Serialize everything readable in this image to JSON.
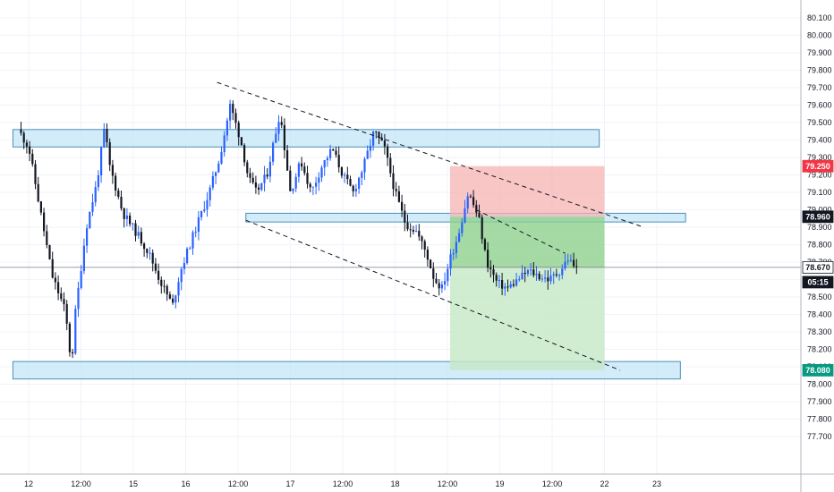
{
  "chart_data": {
    "type": "candlestick",
    "grid": true,
    "y_axis": {
      "side": "right",
      "range": [
        77.65,
        80.15
      ],
      "ticks": [
        "80.100",
        "80.000",
        "79.900",
        "79.800",
        "79.700",
        "79.600",
        "79.500",
        "79.400",
        "79.300",
        "79.200",
        "79.100",
        "79.000",
        "78.900",
        "78.800",
        "78.700",
        "78.600",
        "78.500",
        "78.400",
        "78.300",
        "78.200",
        "78.100",
        "78.000",
        "77.900",
        "77.800",
        "77.700"
      ]
    },
    "x_axis": {
      "ticks": [
        {
          "label": "12",
          "pos": 0
        },
        {
          "label": "12:00",
          "pos": 1
        },
        {
          "label": "15",
          "pos": 2
        },
        {
          "label": "16",
          "pos": 3
        },
        {
          "label": "12:00",
          "pos": 4
        },
        {
          "label": "17",
          "pos": 5
        },
        {
          "label": "12:00",
          "pos": 6
        },
        {
          "label": "18",
          "pos": 7
        },
        {
          "label": "12:00",
          "pos": 8
        },
        {
          "label": "19",
          "pos": 9
        },
        {
          "label": "12:00",
          "pos": 10
        },
        {
          "label": "22",
          "pos": 11
        },
        {
          "label": "23",
          "pos": 12
        }
      ]
    },
    "price_path": [
      [
        -0.2,
        79.46
      ],
      [
        0.0,
        79.36
      ],
      [
        0.25,
        78.95
      ],
      [
        0.45,
        78.62
      ],
      [
        0.7,
        78.42
      ],
      [
        0.82,
        78.1
      ],
      [
        0.88,
        78.38
      ],
      [
        1.1,
        78.9
      ],
      [
        1.3,
        79.15
      ],
      [
        1.45,
        79.47
      ],
      [
        1.55,
        79.25
      ],
      [
        1.8,
        78.98
      ],
      [
        2.1,
        78.85
      ],
      [
        2.3,
        78.75
      ],
      [
        2.5,
        78.6
      ],
      [
        2.75,
        78.45
      ],
      [
        2.9,
        78.65
      ],
      [
        3.2,
        78.9
      ],
      [
        3.45,
        79.1
      ],
      [
        3.65,
        79.3
      ],
      [
        3.85,
        79.6
      ],
      [
        4.05,
        79.4
      ],
      [
        4.2,
        79.18
      ],
      [
        4.35,
        79.1
      ],
      [
        4.55,
        79.2
      ],
      [
        4.8,
        79.56
      ],
      [
        5.0,
        79.1
      ],
      [
        5.2,
        79.28
      ],
      [
        5.4,
        79.1
      ],
      [
        5.6,
        79.25
      ],
      [
        5.8,
        79.35
      ],
      [
        6.0,
        79.2
      ],
      [
        6.2,
        79.1
      ],
      [
        6.4,
        79.25
      ],
      [
        6.6,
        79.45
      ],
      [
        6.8,
        79.35
      ],
      [
        7.0,
        79.1
      ],
      [
        7.2,
        78.92
      ],
      [
        7.4,
        78.88
      ],
      [
        7.6,
        78.75
      ],
      [
        7.75,
        78.6
      ],
      [
        7.9,
        78.55
      ],
      [
        8.05,
        78.72
      ],
      [
        8.2,
        78.85
      ],
      [
        8.4,
        79.1
      ],
      [
        8.6,
        78.95
      ],
      [
        8.75,
        78.7
      ],
      [
        8.95,
        78.58
      ],
      [
        9.15,
        78.55
      ],
      [
        9.35,
        78.6
      ],
      [
        9.55,
        78.65
      ],
      [
        9.75,
        78.62
      ],
      [
        9.95,
        78.6
      ],
      [
        10.15,
        78.65
      ],
      [
        10.3,
        78.72
      ],
      [
        10.5,
        78.65
      ]
    ],
    "zones": [
      {
        "x0": -0.3,
        "x1": 10.9,
        "y0": 79.36,
        "y1": 79.46
      },
      {
        "x0": 4.15,
        "x1": 12.55,
        "y0": 78.93,
        "y1": 78.98
      },
      {
        "x0": -0.3,
        "x1": 12.45,
        "y0": 78.03,
        "y1": 78.13
      }
    ],
    "position": {
      "x0": 8.05,
      "x1": 11.0,
      "entry": 78.96,
      "stop": 79.25,
      "target": 78.08,
      "current": 78.67
    },
    "trendlines": [
      {
        "x0": 3.6,
        "y0": 79.73,
        "x1": 11.75,
        "y1": 78.9
      },
      {
        "x0": 4.15,
        "y0": 78.94,
        "x1": 11.3,
        "y1": 78.08
      },
      {
        "x0": 8.55,
        "y0": 79.0,
        "x1": 10.25,
        "y1": 78.75
      }
    ],
    "price_badges": [
      {
        "text": "79.250",
        "value": 79.25,
        "bg": "#f23645",
        "fg": "#ffffff"
      },
      {
        "text": "78.960",
        "value": 78.96,
        "bg": "#131722",
        "fg": "#ffffff"
      },
      {
        "text": "78.670",
        "value": 78.67,
        "bg": "#ffffff",
        "fg": "#131722"
      },
      {
        "text": "05:15",
        "value": 78.585,
        "bg": "#131722",
        "fg": "#ffffff"
      },
      {
        "text": "78.080",
        "value": 78.08,
        "bg": "#089981",
        "fg": "#ffffff"
      }
    ],
    "colors": {
      "up": "#2962ff",
      "down": "#131722",
      "grid": "#f0f3fa",
      "zone_fill": "#c4e6f7",
      "zone_stroke": "#4a90b8",
      "stop_fill": "#f7b3b3",
      "profit_fill_dark": "#8fd18f",
      "profit_fill_light": "#c5e8c5"
    }
  }
}
